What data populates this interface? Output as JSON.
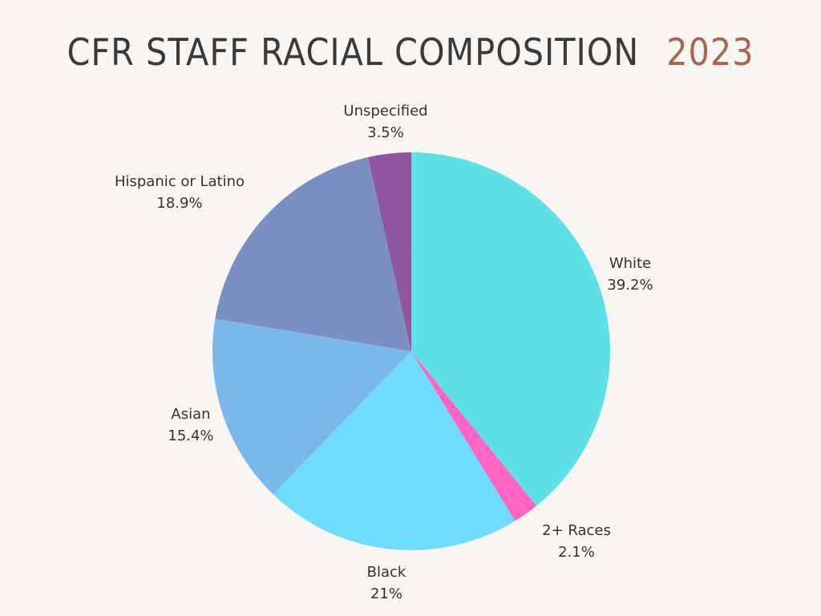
{
  "title": "CFR STAFF RACIAL COMPOSITION",
  "year": "2023",
  "chart_data": {
    "type": "pie",
    "title": "CFR STAFF RACIAL COMPOSITION 2023",
    "slices": [
      {
        "label": "White",
        "value": 39.2,
        "display": "39.2%",
        "color": "#5ee1e6"
      },
      {
        "label": "2+ Races",
        "value": 2.1,
        "display": "2.1%",
        "color": "#ff66c4"
      },
      {
        "label": "Black",
        "value": 21,
        "display": "21%",
        "color": "#6fdcff"
      },
      {
        "label": "Asian",
        "value": 15.4,
        "display": "15.4%",
        "color": "#7ab8ec"
      },
      {
        "label": "Hispanic or Latino",
        "value": 18.9,
        "display": "18.9%",
        "color": "#7a90c3"
      },
      {
        "label": "Unspecified",
        "value": 3.5,
        "display": "3.5%",
        "color": "#8e55a0"
      }
    ]
  }
}
